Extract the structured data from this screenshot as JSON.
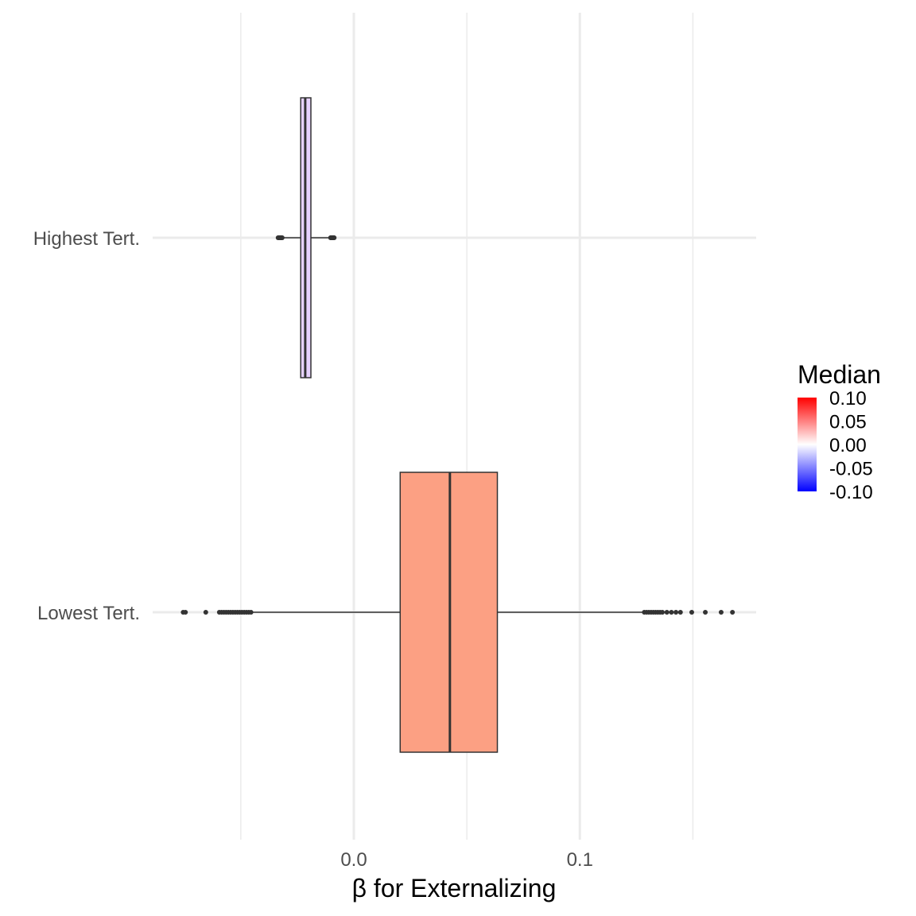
{
  "chart_data": {
    "type": "boxplot",
    "orientation": "horizontal",
    "title": "",
    "xlabel": "β for Externalizing",
    "ylabel": "",
    "xlim": [
      -0.089,
      0.178
    ],
    "x_major_ticks": [
      0.0,
      0.1
    ],
    "x_major_tick_labels": [
      "0.0",
      "0.1"
    ],
    "x_minor_gridlines": [
      -0.05,
      0.05,
      0.15
    ],
    "grid": true,
    "categories": [
      "Highest Tert.",
      "Lowest Tert."
    ],
    "boxes": [
      {
        "category": "Highest Tert.",
        "median": -0.0215,
        "q1": -0.0235,
        "q3": -0.019,
        "whisker_low": -0.0315,
        "whisker_high": -0.0105,
        "outliers": [
          -0.0335,
          -0.0333,
          -0.0331,
          -0.0329,
          -0.0327,
          -0.0325,
          -0.0323,
          -0.0321,
          -0.0319,
          -0.0317,
          -0.0103,
          -0.0101,
          -0.0099,
          -0.0097,
          -0.0095,
          -0.0093,
          -0.0091,
          -0.0089,
          -0.0087
        ],
        "fill": "#e6d2ff"
      },
      {
        "category": "Lowest Tert.",
        "median": 0.0425,
        "q1": 0.0205,
        "q3": 0.0635,
        "whisker_low": -0.0445,
        "whisker_high": 0.1275,
        "outliers": [
          -0.0755,
          -0.0745,
          -0.0655,
          -0.0595,
          -0.0585,
          -0.0575,
          -0.0565,
          -0.0555,
          -0.0545,
          -0.0535,
          -0.0525,
          -0.0515,
          -0.0505,
          -0.0495,
          -0.0485,
          -0.0475,
          -0.0465,
          -0.0455,
          0.1285,
          0.1295,
          0.1305,
          0.1315,
          0.1325,
          0.1335,
          0.1345,
          0.1355,
          0.1365,
          0.1385,
          0.1405,
          0.1425,
          0.1445,
          0.1495,
          0.1555,
          0.1625,
          0.1675
        ],
        "fill": "#fca083"
      }
    ],
    "legend": {
      "title": "Median",
      "position": "right",
      "type": "colorbar",
      "labels": [
        "0.10",
        "0.05",
        "0.00",
        "-0.05",
        "-0.10"
      ],
      "values": [
        0.1,
        0.05,
        0.0,
        -0.05,
        -0.1
      ],
      "colors": {
        "low": "#0000ff",
        "mid": "#ffffff",
        "high": "#ff0000"
      }
    },
    "colors": {
      "gridline": "#ebebeb",
      "box_outline": "#333333",
      "whisker": "#333333",
      "outlier": "#333333"
    }
  }
}
